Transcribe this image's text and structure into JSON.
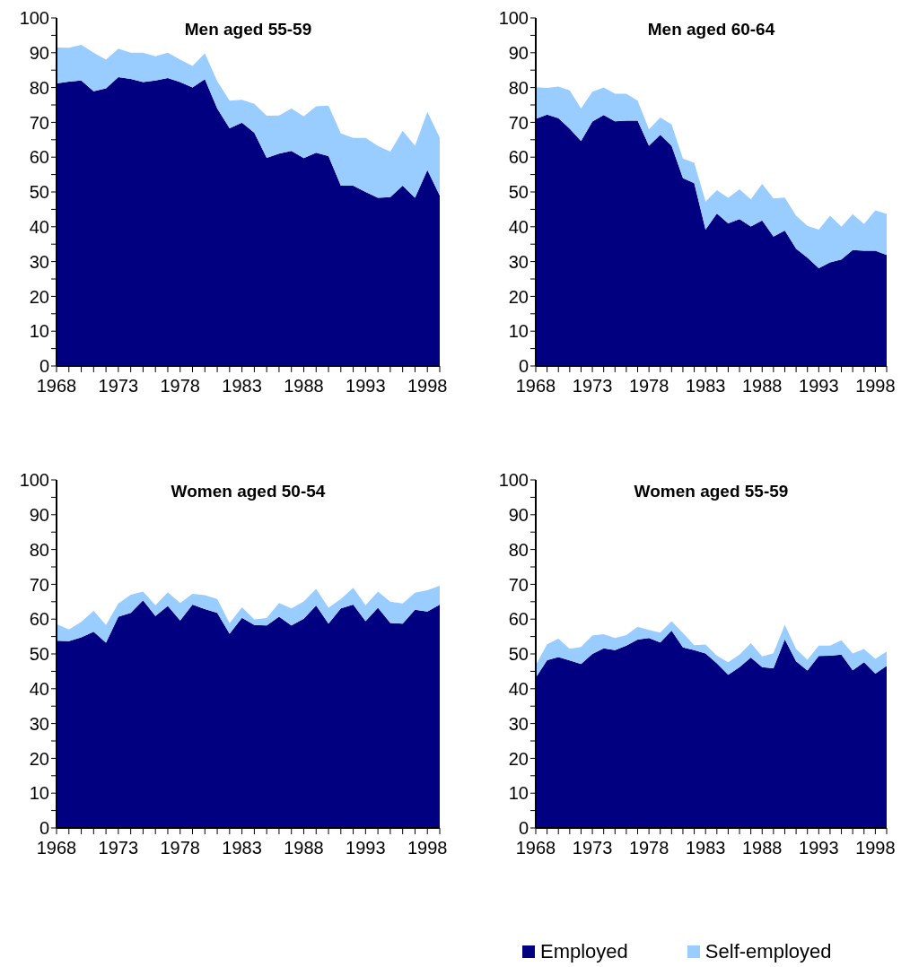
{
  "chart_data": [
    {
      "type": "area",
      "title": "Men aged 55-59",
      "stacked": true,
      "categories": [
        "1968",
        null,
        null,
        null,
        null,
        "1973",
        null,
        null,
        null,
        null,
        "1978",
        null,
        null,
        null,
        null,
        "1983",
        null,
        null,
        null,
        null,
        "1988",
        null,
        null,
        null,
        null,
        "1993",
        null,
        null,
        null,
        null,
        "1998",
        null
      ],
      "ylim": [
        0,
        100
      ],
      "yticks": [
        0,
        {
          "value": 5,
          "label": null
        },
        10,
        {
          "value": 15,
          "label": null
        },
        20,
        {
          "value": 25,
          "label": null
        },
        30,
        {
          "value": 35,
          "label": null
        },
        40,
        {
          "value": 45,
          "label": null
        },
        50,
        {
          "value": 55,
          "label": null
        },
        60,
        {
          "value": 65,
          "label": null
        },
        70,
        {
          "value": 75,
          "label": null
        },
        80,
        {
          "value": 85,
          "label": null
        },
        90,
        {
          "value": 95,
          "label": null
        },
        100
      ],
      "series": [
        {
          "color": "#000080",
          "values": [
            81.2,
            81.7,
            82,
            78.9,
            79.8,
            83,
            82.5,
            81.6,
            82,
            82.7,
            81.6,
            80,
            82.4,
            74,
            68.3,
            69.9,
            67,
            59.8,
            61,
            61.8,
            59.7,
            61.3,
            60.3,
            51.8,
            51.8,
            50,
            48.3,
            48.5,
            51.8,
            48.3,
            56.3,
            49
          ]
        },
        {
          "color": "#99ccff",
          "values": [
            10.3,
            9.7,
            10.3,
            11.1,
            8.2,
            8.2,
            7.5,
            8.4,
            7,
            7.3,
            6.4,
            6.2,
            7.4,
            7.8,
            7.9,
            6.6,
            8.3,
            12.1,
            11,
            12.2,
            12,
            13.3,
            14.5,
            15,
            13.7,
            15.5,
            14.9,
            13.1,
            15.8,
            15,
            16.7,
            16.6
          ]
        }
      ]
    },
    {
      "type": "area",
      "title": "Men aged 60-64",
      "stacked": true,
      "categories": [
        "1968",
        null,
        null,
        null,
        null,
        "1973",
        null,
        null,
        null,
        null,
        "1978",
        null,
        null,
        null,
        null,
        "1983",
        null,
        null,
        null,
        null,
        "1988",
        null,
        null,
        null,
        null,
        "1993",
        null,
        null,
        null,
        null,
        "1998",
        null
      ],
      "ylim": [
        0,
        100
      ],
      "yticks": [
        0,
        {
          "value": 5,
          "label": null
        },
        10,
        {
          "value": 15,
          "label": null
        },
        20,
        {
          "value": 25,
          "label": null
        },
        30,
        {
          "value": 35,
          "label": null
        },
        40,
        {
          "value": 45,
          "label": null
        },
        50,
        {
          "value": 55,
          "label": null
        },
        60,
        {
          "value": 65,
          "label": null
        },
        70,
        {
          "value": 75,
          "label": null
        },
        80,
        {
          "value": 85,
          "label": null
        },
        90,
        {
          "value": 95,
          "label": null
        },
        100
      ],
      "series": [
        {
          "color": "#000080",
          "values": [
            71,
            72.2,
            71.2,
            68.2,
            64.6,
            70.2,
            72.1,
            70.3,
            70.5,
            70.5,
            63.3,
            66.4,
            63.3,
            54,
            52.5,
            39.2,
            43.8,
            41,
            42.2,
            40.1,
            41.8,
            37.2,
            38.9,
            33.7,
            31.1,
            28.1,
            29.8,
            30.6,
            33.3,
            33.1,
            33.1,
            31.9
          ]
        },
        {
          "color": "#99ccff",
          "values": [
            9.1,
            7.7,
            9.1,
            11,
            9.4,
            8.6,
            7.9,
            7.9,
            7.7,
            5.7,
            4.7,
            5,
            6.1,
            5.6,
            5.9,
            8,
            6.7,
            7.3,
            8.6,
            7.8,
            10.5,
            10.9,
            9.5,
            9.5,
            9.2,
            11.1,
            13.4,
            9.4,
            10.3,
            7.7,
            11.6,
            11.8
          ]
        }
      ]
    },
    {
      "type": "area",
      "title": "Women aged 50-54",
      "stacked": true,
      "categories": [
        "1968",
        null,
        null,
        null,
        null,
        "1973",
        null,
        null,
        null,
        null,
        "1978",
        null,
        null,
        null,
        null,
        "1983",
        null,
        null,
        null,
        null,
        "1988",
        null,
        null,
        null,
        null,
        "1993",
        null,
        null,
        null,
        null,
        "1998",
        null
      ],
      "ylim": [
        0,
        100
      ],
      "yticks": [
        0,
        {
          "value": 5,
          "label": null
        },
        10,
        {
          "value": 15,
          "label": null
        },
        20,
        {
          "value": 25,
          "label": null
        },
        30,
        {
          "value": 35,
          "label": null
        },
        40,
        {
          "value": 45,
          "label": null
        },
        50,
        {
          "value": 55,
          "label": null
        },
        60,
        {
          "value": 65,
          "label": null
        },
        70,
        {
          "value": 75,
          "label": null
        },
        80,
        {
          "value": 85,
          "label": null
        },
        90,
        {
          "value": 95,
          "label": null
        },
        100
      ],
      "series": [
        {
          "color": "#000080",
          "values": [
            53.8,
            53.7,
            54.8,
            56.4,
            53.2,
            60.7,
            61.8,
            65.4,
            60.9,
            63.8,
            59.6,
            64.2,
            62.9,
            61.8,
            55.8,
            60.4,
            58.3,
            58.2,
            60.7,
            58.2,
            60.1,
            63.9,
            58.7,
            63.1,
            64.2,
            59.4,
            63.3,
            58.9,
            58.7,
            62.7,
            62.2,
            64.2
          ]
        },
        {
          "color": "#99ccff",
          "values": [
            4.8,
            3.3,
            4.4,
            6,
            5.1,
            3.8,
            5.2,
            2.5,
            3.1,
            3.9,
            5,
            3.1,
            4,
            4,
            3,
            3,
            1.6,
            2.1,
            3.9,
            4.9,
            5,
            4.8,
            4.6,
            2.7,
            4.8,
            4.6,
            4.6,
            6.1,
            5.8,
            4.9,
            6.1,
            5.4
          ]
        }
      ]
    },
    {
      "type": "area",
      "title": "Women aged 55-59",
      "stacked": true,
      "legend": "bottom",
      "categories": [
        "1968",
        null,
        null,
        null,
        null,
        "1973",
        null,
        null,
        null,
        null,
        "1978",
        null,
        null,
        null,
        null,
        "1983",
        null,
        null,
        null,
        null,
        "1988",
        null,
        null,
        null,
        null,
        "1993",
        null,
        null,
        null,
        null,
        "1998",
        null
      ],
      "ylim": [
        0,
        100
      ],
      "yticks": [
        0,
        {
          "value": 5,
          "label": null
        },
        10,
        {
          "value": 15,
          "label": null
        },
        20,
        {
          "value": 25,
          "label": null
        },
        30,
        {
          "value": 35,
          "label": null
        },
        40,
        {
          "value": 45,
          "label": null
        },
        50,
        {
          "value": 55,
          "label": null
        },
        60,
        {
          "value": 65,
          "label": null
        },
        70,
        {
          "value": 75,
          "label": null
        },
        80,
        {
          "value": 85,
          "label": null
        },
        90,
        {
          "value": 95,
          "label": null
        },
        100
      ],
      "series": [
        {
          "name": "Employed",
          "color": "#000080",
          "values": [
            43.2,
            48.2,
            49.1,
            48.1,
            47.1,
            50,
            51.6,
            51.1,
            52.4,
            54.1,
            54.6,
            53.3,
            56.7,
            51.9,
            51.1,
            50.1,
            47.3,
            44,
            46.2,
            49,
            46.2,
            45.9,
            54.2,
            47.9,
            45.2,
            49.4,
            49.5,
            49.8,
            45.3,
            47.6,
            44.3,
            46.6
          ]
        },
        {
          "name": "Self-employed",
          "color": "#99ccff",
          "values": [
            3.6,
            4.6,
            5.3,
            3.4,
            4.9,
            5.3,
            4.1,
            3.5,
            3,
            3.7,
            2.3,
            2.8,
            2.7,
            4.1,
            1.4,
            2.6,
            2.2,
            3.6,
            3.6,
            4.1,
            3.1,
            4.3,
            4.2,
            3.5,
            3.1,
            3,
            2.9,
            4.1,
            4.8,
            3.8,
            4.3,
            4.1
          ]
        }
      ]
    }
  ]
}
